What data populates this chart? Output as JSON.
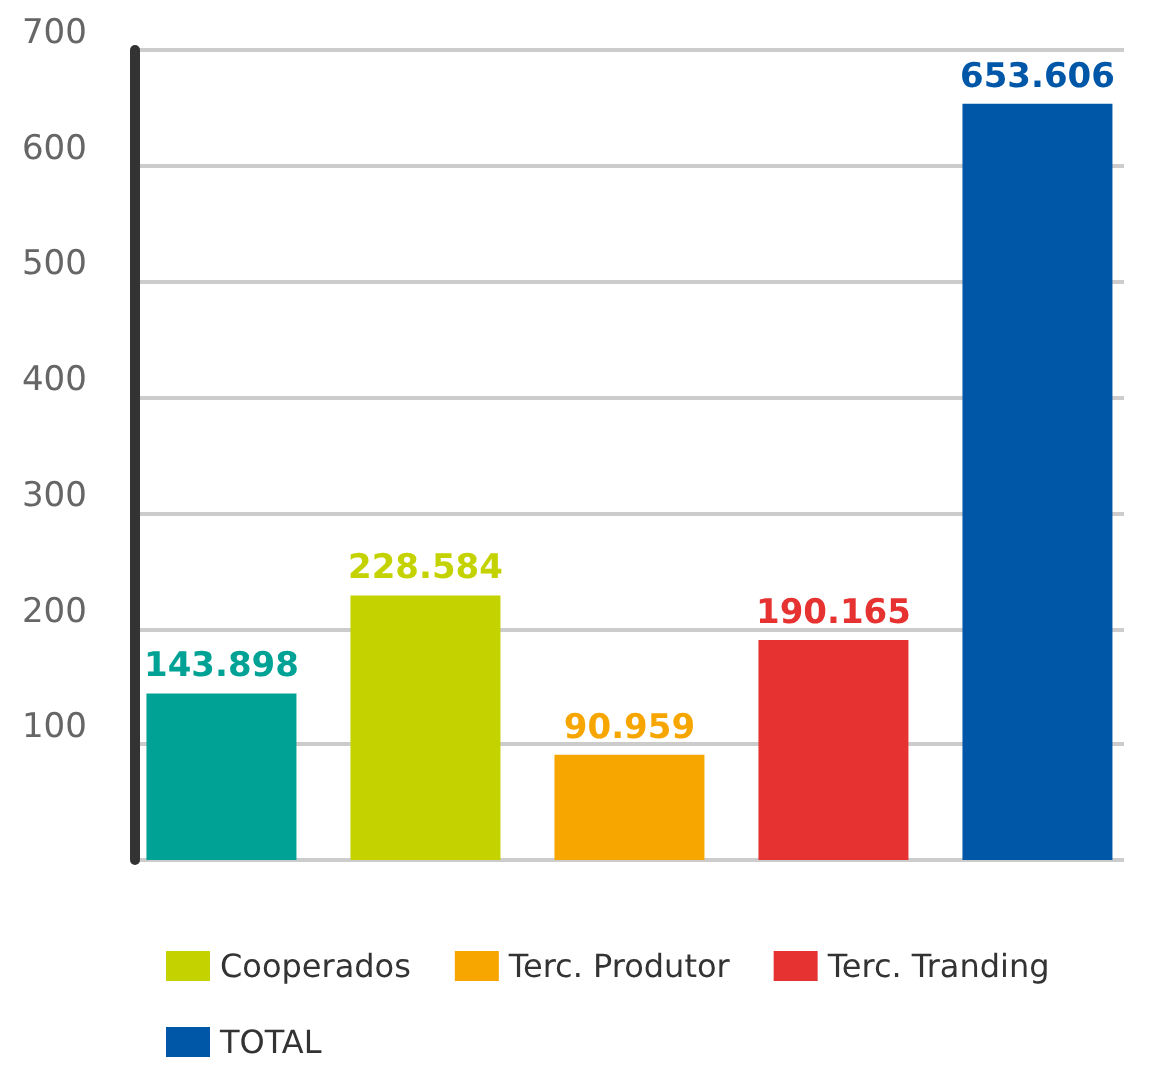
{
  "chart_data": {
    "type": "bar",
    "categories": [
      null
    ],
    "series": [
      {
        "color": "#00a295",
        "values": [
          143.898
        ],
        "value_labels": [
          "143.898"
        ]
      },
      {
        "name": "Cooperados",
        "color": "#c4d300",
        "values": [
          228.584
        ],
        "value_labels": [
          "228.584"
        ]
      },
      {
        "name": "Terc. Produtor",
        "color": "#f7a600",
        "values": [
          90.959
        ],
        "value_labels": [
          "90.959"
        ]
      },
      {
        "name": "Terc. Tranding",
        "color": "#e63331",
        "values": [
          190.165
        ],
        "value_labels": [
          "190.165"
        ]
      },
      {
        "name": "TOTAL",
        "color": "#0057a8",
        "values": [
          653.606
        ],
        "value_labels": [
          "653.606"
        ]
      }
    ],
    "ylim": [
      0,
      700
    ],
    "yticks": [
      {
        "value": 0,
        "label": null
      },
      100,
      200,
      300,
      400,
      500,
      600,
      700
    ],
    "grid": "y",
    "legend": "bottom"
  }
}
